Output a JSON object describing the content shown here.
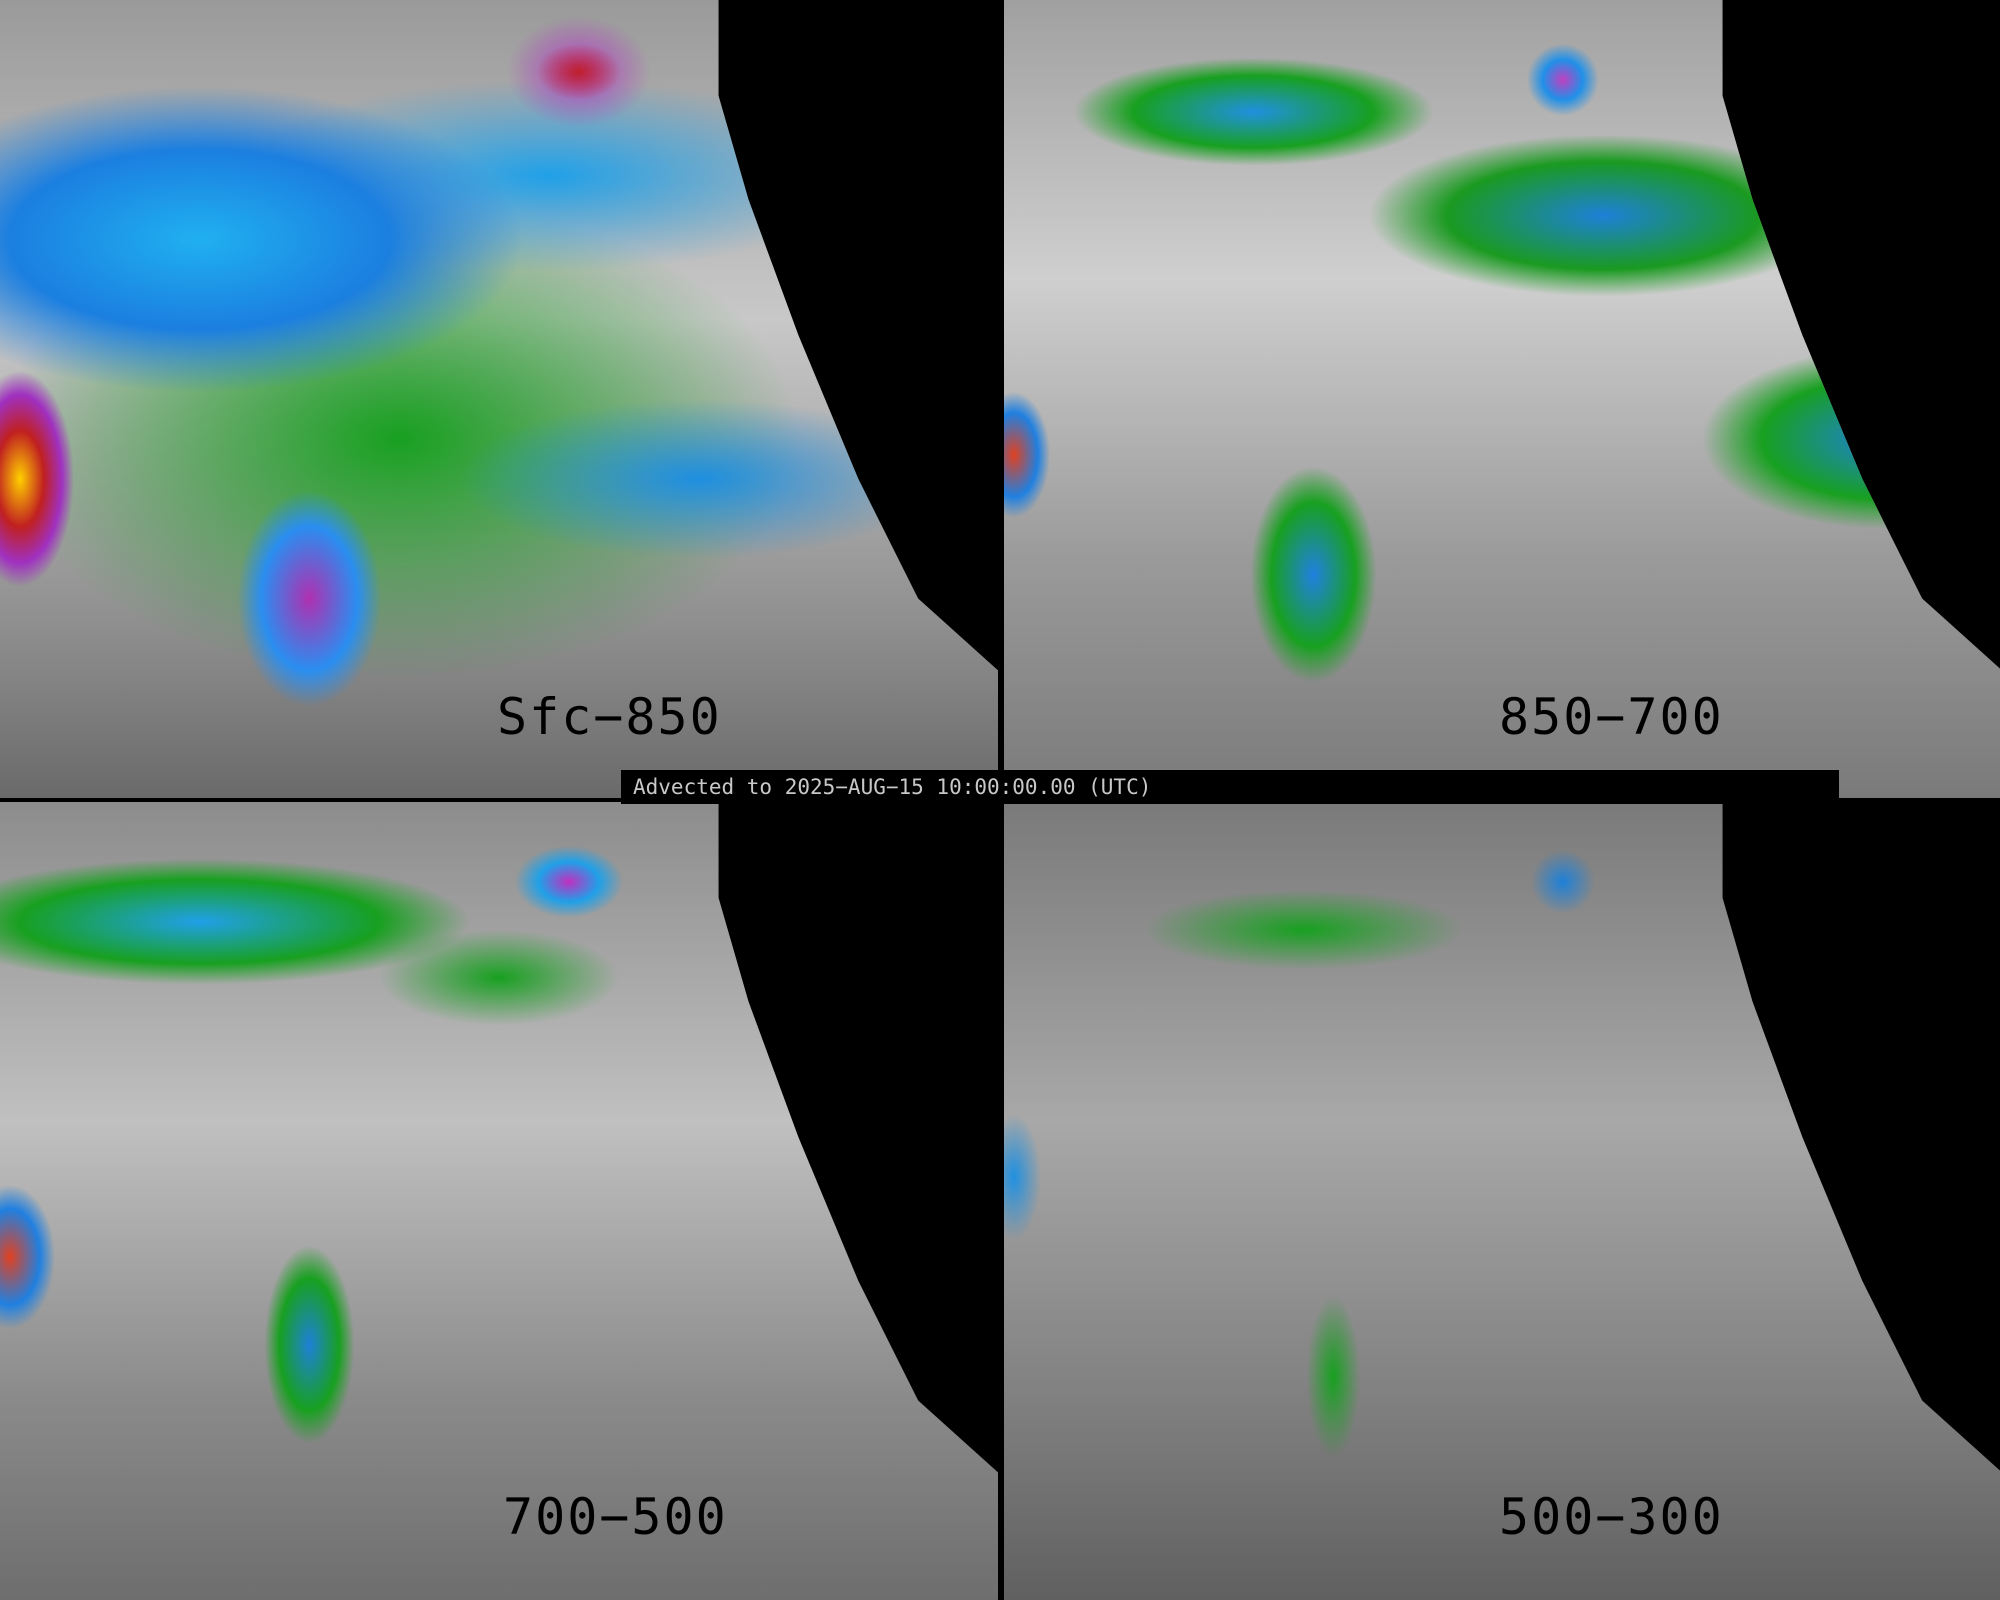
{
  "panels": [
    {
      "label": "Sfc−850"
    },
    {
      "label": "850−700"
    },
    {
      "label": "700−500"
    },
    {
      "label": "500−300"
    }
  ],
  "timestamp": "Advected to 2025−AUG−15 10:00:00.00 (UTC)"
}
